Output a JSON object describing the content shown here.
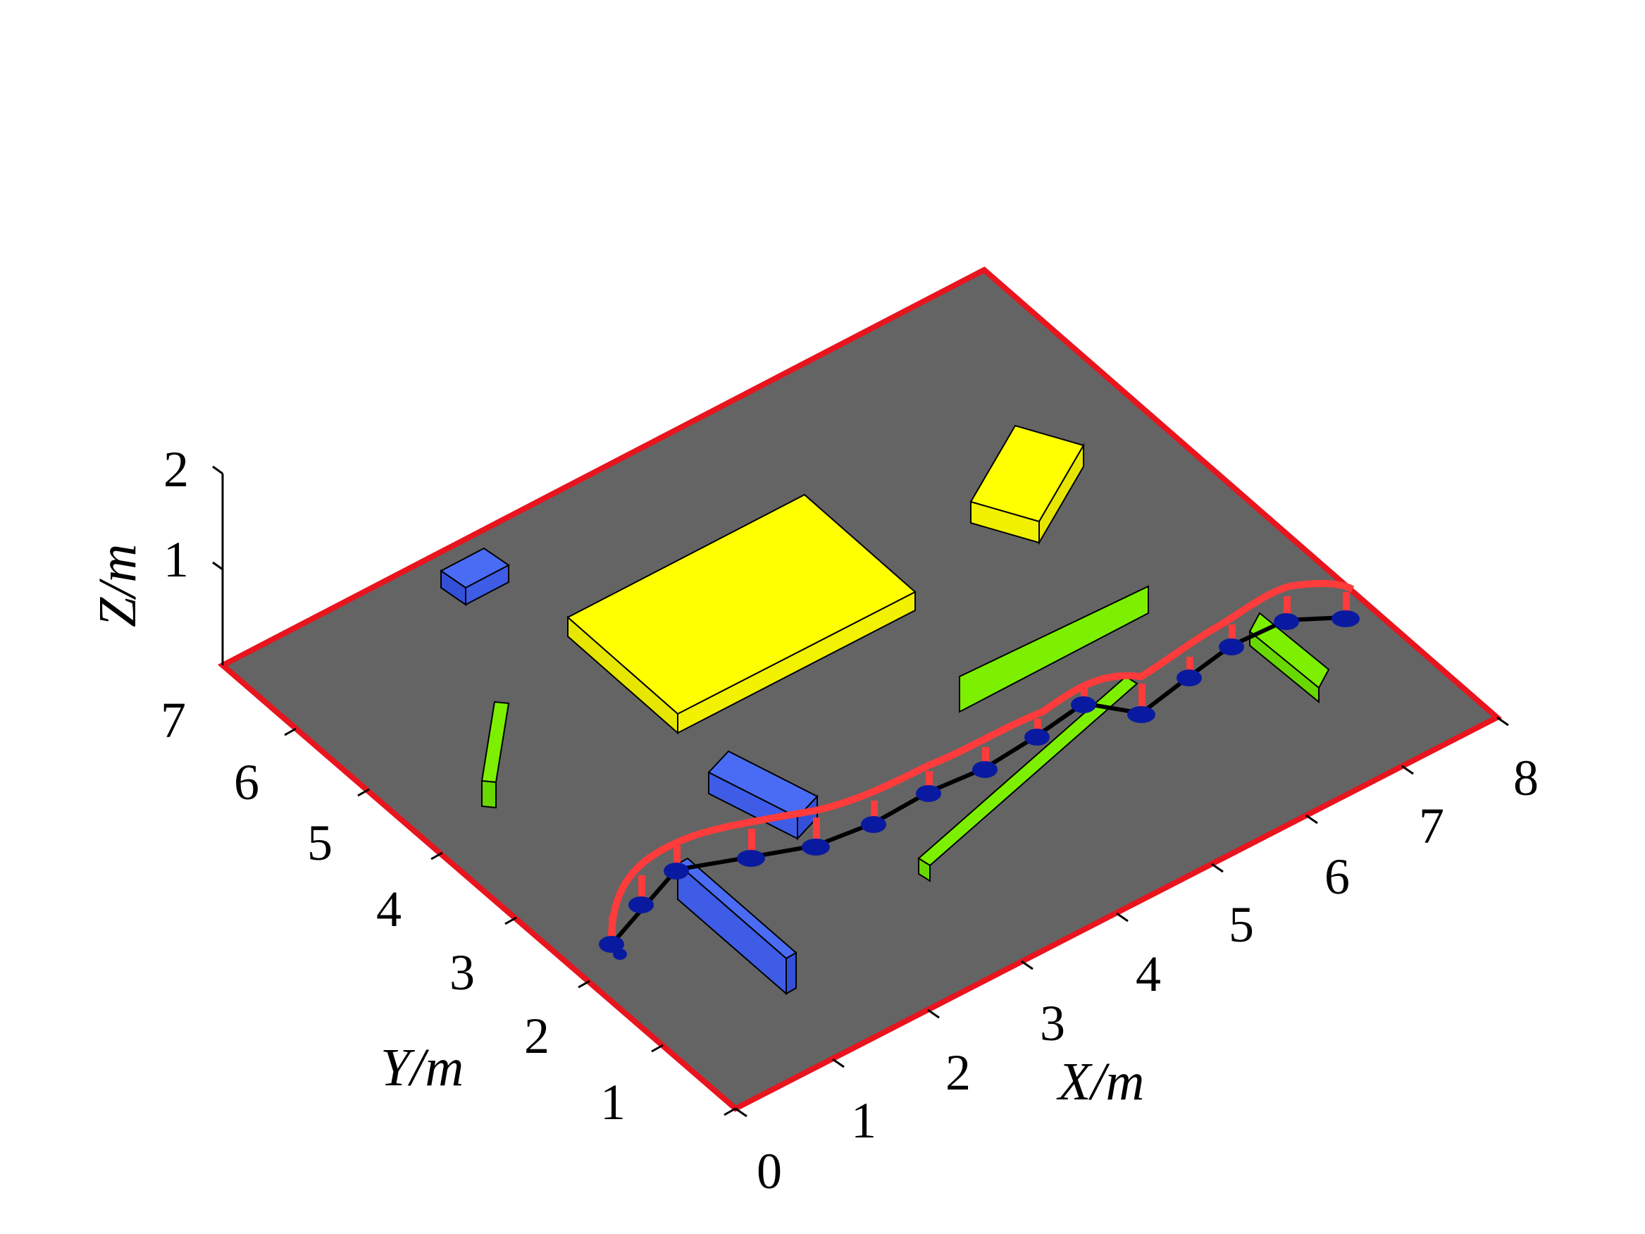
{
  "axes": {
    "x": {
      "title": "X/m",
      "ticks": [
        "0",
        "1",
        "2",
        "3",
        "4",
        "5",
        "6",
        "7",
        "8"
      ]
    },
    "y": {
      "title": "Y/m",
      "ticks": [
        "1",
        "2",
        "3",
        "4",
        "5",
        "6",
        "7"
      ]
    },
    "z": {
      "title": "Z/m",
      "ticks": [
        "1",
        "2"
      ]
    }
  },
  "colors": {
    "ground": "#646464",
    "ground_edge": "#e8141e",
    "obstacle_blue": "#4a6cf4",
    "obstacle_yellow": "#ffff00",
    "obstacle_green": "#7cf000",
    "robot_upper": "#ff3b3b",
    "robot_lower": "#0a1aa0",
    "path": "#000000"
  }
}
